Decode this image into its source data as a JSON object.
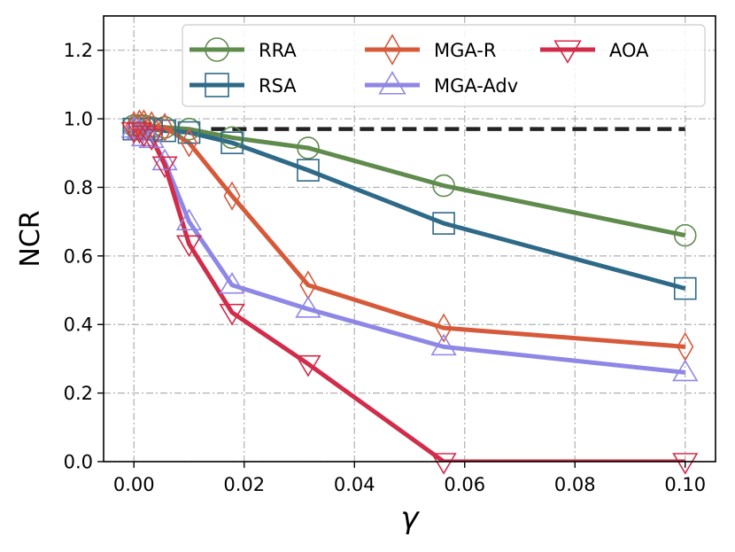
{
  "chart_data": {
    "type": "line",
    "xlabel": "γ",
    "ylabel": "NCR",
    "xlim": [
      -0.0055,
      0.1055
    ],
    "ylim": [
      0.0,
      1.3
    ],
    "xticks": [
      0.0,
      0.02,
      0.04,
      0.06,
      0.08,
      0.1
    ],
    "xtick_labels": [
      "0.00",
      "0.02",
      "0.04",
      "0.06",
      "0.08",
      "0.10"
    ],
    "yticks": [
      0.0,
      0.2,
      0.4,
      0.6,
      0.8,
      1.0,
      1.2
    ],
    "ytick_labels": [
      "0.0",
      "0.2",
      "0.4",
      "0.6",
      "0.8",
      "1.0",
      "1.2"
    ],
    "grid": true,
    "legend_position": "top-right",
    "reference_line": {
      "y": 0.97,
      "x": [
        0.014,
        0.1
      ],
      "style": "dashed",
      "color": "#222222"
    },
    "x": [
      0.0,
      0.001,
      0.0018,
      0.0032,
      0.0056,
      0.01,
      0.0178,
      0.0316,
      0.0562,
      0.1
    ],
    "series": [
      {
        "name": "RRA",
        "color": "#5f8b4c",
        "marker": "circle",
        "values": [
          0.98,
          0.98,
          0.98,
          0.975,
          0.975,
          0.97,
          0.945,
          0.915,
          0.805,
          0.66
        ]
      },
      {
        "name": "RSA",
        "color": "#2e6a87",
        "marker": "square",
        "values": [
          0.97,
          0.97,
          0.97,
          0.97,
          0.965,
          0.96,
          0.93,
          0.85,
          0.695,
          0.505
        ]
      },
      {
        "name": "MGA-R",
        "color": "#d65a3a",
        "marker": "diamond",
        "values": [
          0.98,
          0.985,
          0.985,
          0.98,
          0.975,
          0.93,
          0.775,
          0.515,
          0.39,
          0.335
        ]
      },
      {
        "name": "MGA-Adv",
        "color": "#8f87e6",
        "marker": "triangle-up",
        "values": [
          0.97,
          0.965,
          0.945,
          0.94,
          0.875,
          0.7,
          0.515,
          0.445,
          0.335,
          0.26
        ]
      },
      {
        "name": "AOA",
        "color": "#d12c4a",
        "marker": "triangle-down",
        "values": [
          0.965,
          0.965,
          0.955,
          0.945,
          0.865,
          0.635,
          0.435,
          0.285,
          0.0,
          0.0
        ]
      }
    ],
    "legend_columns": [
      [
        "RRA",
        "RSA"
      ],
      [
        "MGA-R",
        "MGA-Adv"
      ],
      [
        "AOA"
      ]
    ]
  }
}
